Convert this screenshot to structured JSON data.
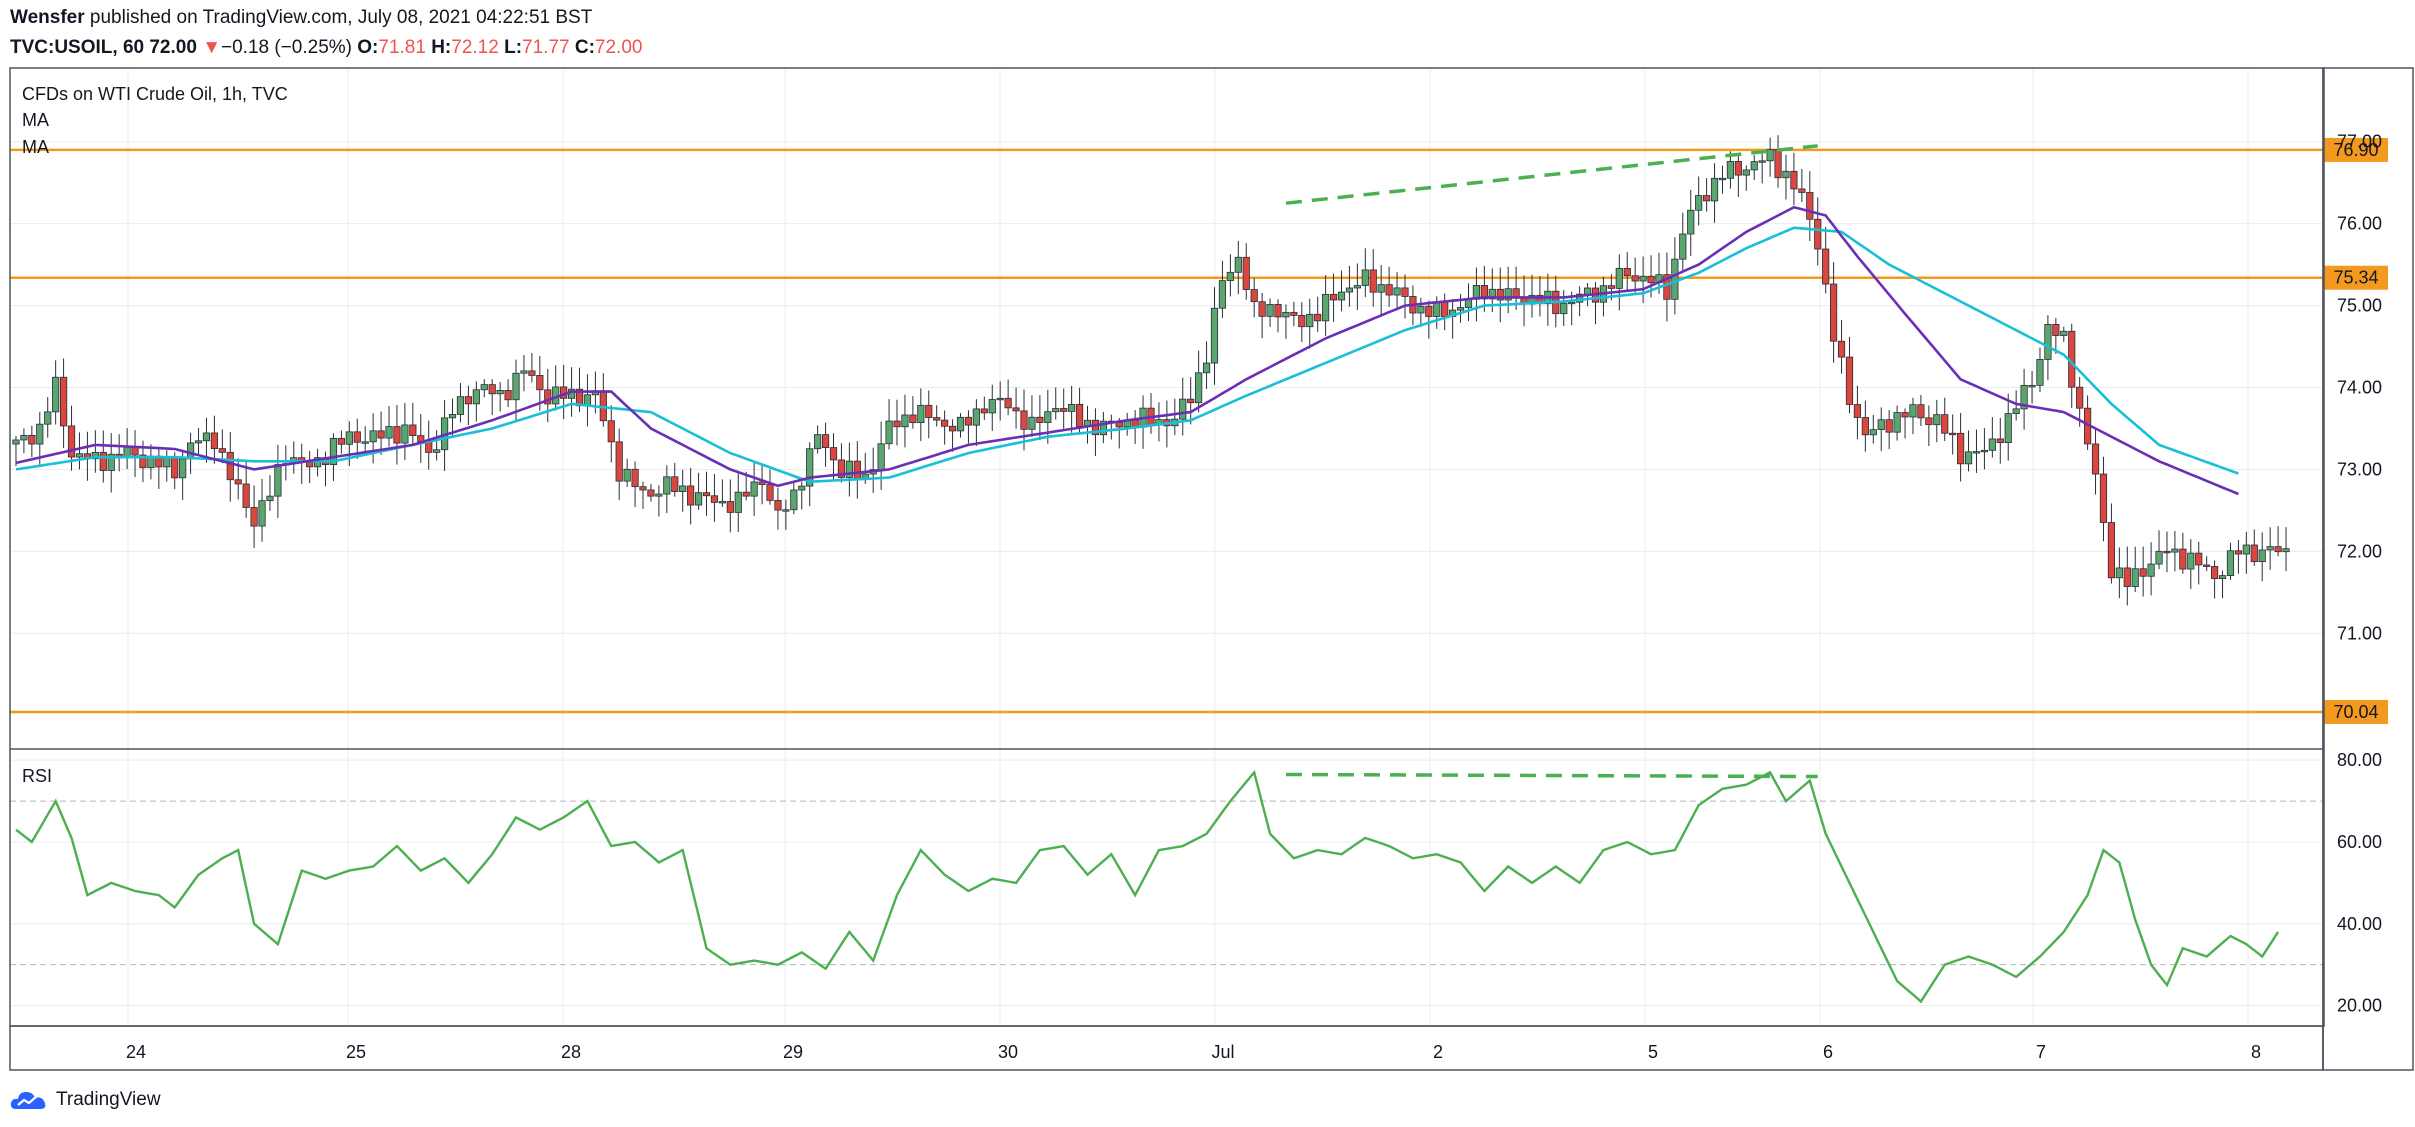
{
  "header": {
    "publisher": "Wensfer",
    "published_text": "published on TradingView.com, July 08, 2021 04:22:51 BST",
    "symbol": "TVC:USOIL, 60",
    "last": "72.00",
    "change_arrow": "▼",
    "change": "−0.18 (−0.25%)",
    "o_label": "O:",
    "o_value": "71.81",
    "h_label": "H:",
    "h_value": "72.12",
    "l_label": "L:",
    "l_value": "71.77",
    "c_label": "C:",
    "c_value": "72.00"
  },
  "legend": {
    "title": "CFDs on WTI Crude Oil, 1h, TVC",
    "ma1": "MA",
    "ma2": "MA",
    "rsi": "RSI"
  },
  "footer": {
    "brand": "TradingView",
    "logo_icon": "tradingview-cloud-icon"
  },
  "colors": {
    "up": "#26a69a",
    "up_fill": "#5aa66e",
    "down": "#d9473f",
    "ma_fast": "#6a2fb5",
    "ma_slow": "#19bfd6",
    "level": "#f39a1e",
    "trend": "#4caf50",
    "rsi": "#4caf50",
    "grid": "#e9ecf1",
    "axis": "#131722"
  },
  "chart_data": {
    "type": "candlestick",
    "x_tick_labels": [
      "24",
      "25",
      "28",
      "29",
      "30",
      "Jul",
      "2",
      "5",
      "6",
      "7",
      "8"
    ],
    "price_ticks": [
      "72.00",
      "71.00",
      "73.00",
      "74.00",
      "75.00",
      "76.00",
      "77.00"
    ],
    "price_range": [
      69.6,
      77.9
    ],
    "levels": [
      {
        "value": 76.9,
        "label": "76.90"
      },
      {
        "value": 75.34,
        "label": "75.34"
      },
      {
        "value": 70.04,
        "label": "70.04"
      }
    ],
    "price_anchors": [
      [
        0,
        73.3
      ],
      [
        3,
        73.5
      ],
      [
        5,
        74.0
      ],
      [
        7,
        73.2
      ],
      [
        10,
        73.1
      ],
      [
        14,
        73.2
      ],
      [
        17,
        73.1
      ],
      [
        20,
        73.0
      ],
      [
        22,
        73.3
      ],
      [
        25,
        73.4
      ],
      [
        27,
        72.9
      ],
      [
        30,
        72.4
      ],
      [
        32,
        72.7
      ],
      [
        34,
        73.2
      ],
      [
        37,
        73.0
      ],
      [
        40,
        73.3
      ],
      [
        43,
        73.4
      ],
      [
        46,
        73.4
      ],
      [
        49,
        73.5
      ],
      [
        52,
        73.2
      ],
      [
        55,
        73.7
      ],
      [
        58,
        74.0
      ],
      [
        61,
        73.9
      ],
      [
        64,
        74.2
      ],
      [
        67,
        73.9
      ],
      [
        70,
        73.9
      ],
      [
        73,
        73.9
      ],
      [
        76,
        73.0
      ],
      [
        79,
        72.7
      ],
      [
        82,
        72.8
      ],
      [
        85,
        72.7
      ],
      [
        88,
        72.6
      ],
      [
        91,
        72.6
      ],
      [
        94,
        72.9
      ],
      [
        96,
        72.4
      ],
      [
        98,
        72.7
      ],
      [
        101,
        73.4
      ],
      [
        104,
        73.0
      ],
      [
        107,
        72.9
      ],
      [
        110,
        73.5
      ],
      [
        113,
        73.7
      ],
      [
        116,
        73.6
      ],
      [
        119,
        73.5
      ],
      [
        122,
        73.8
      ],
      [
        125,
        73.8
      ],
      [
        128,
        73.5
      ],
      [
        131,
        73.8
      ],
      [
        134,
        73.6
      ],
      [
        137,
        73.5
      ],
      [
        140,
        73.6
      ],
      [
        143,
        73.6
      ],
      [
        146,
        73.6
      ],
      [
        148,
        73.9
      ],
      [
        150,
        74.4
      ],
      [
        152,
        75.3
      ],
      [
        154,
        75.6
      ],
      [
        156,
        74.9
      ],
      [
        158,
        75.0
      ],
      [
        161,
        74.8
      ],
      [
        164,
        74.9
      ],
      [
        167,
        75.2
      ],
      [
        170,
        75.3
      ],
      [
        173,
        75.2
      ],
      [
        176,
        75.0
      ],
      [
        179,
        74.9
      ],
      [
        182,
        75.0
      ],
      [
        185,
        75.2
      ],
      [
        188,
        75.1
      ],
      [
        191,
        75.1
      ],
      [
        194,
        75.0
      ],
      [
        197,
        75.1
      ],
      [
        200,
        75.2
      ],
      [
        203,
        75.4
      ],
      [
        206,
        75.3
      ],
      [
        208,
        75.2
      ],
      [
        210,
        75.9
      ],
      [
        212,
        76.3
      ],
      [
        215,
        76.6
      ],
      [
        218,
        76.7
      ],
      [
        221,
        76.8
      ],
      [
        223,
        76.6
      ],
      [
        225,
        76.3
      ],
      [
        227,
        75.8
      ],
      [
        229,
        74.6
      ],
      [
        231,
        73.9
      ],
      [
        233,
        73.4
      ],
      [
        236,
        73.6
      ],
      [
        239,
        73.7
      ],
      [
        242,
        73.6
      ],
      [
        245,
        73.2
      ],
      [
        248,
        73.2
      ],
      [
        251,
        73.6
      ],
      [
        254,
        74.1
      ],
      [
        256,
        74.7
      ],
      [
        258,
        74.6
      ],
      [
        260,
        73.7
      ],
      [
        262,
        72.9
      ],
      [
        264,
        71.8
      ],
      [
        266,
        71.6
      ],
      [
        268,
        71.8
      ],
      [
        271,
        72.0
      ],
      [
        274,
        71.9
      ],
      [
        277,
        71.7
      ],
      [
        280,
        72.0
      ]
    ],
    "ma_fast_anchors": [
      [
        0,
        73.08
      ],
      [
        10,
        73.3
      ],
      [
        20,
        73.25
      ],
      [
        30,
        73.0
      ],
      [
        40,
        73.15
      ],
      [
        50,
        73.3
      ],
      [
        60,
        73.6
      ],
      [
        70,
        73.95
      ],
      [
        75,
        73.95
      ],
      [
        80,
        73.5
      ],
      [
        90,
        73.0
      ],
      [
        96,
        72.8
      ],
      [
        100,
        72.9
      ],
      [
        110,
        73.0
      ],
      [
        120,
        73.3
      ],
      [
        130,
        73.45
      ],
      [
        140,
        73.6
      ],
      [
        148,
        73.7
      ],
      [
        155,
        74.1
      ],
      [
        165,
        74.6
      ],
      [
        175,
        75.0
      ],
      [
        185,
        75.1
      ],
      [
        195,
        75.1
      ],
      [
        205,
        75.2
      ],
      [
        212,
        75.5
      ],
      [
        218,
        75.9
      ],
      [
        224,
        76.2
      ],
      [
        228,
        76.1
      ],
      [
        232,
        75.6
      ],
      [
        238,
        74.9
      ],
      [
        245,
        74.1
      ],
      [
        252,
        73.8
      ],
      [
        258,
        73.7
      ],
      [
        264,
        73.4
      ],
      [
        270,
        73.1
      ],
      [
        280,
        72.7
      ]
    ],
    "ma_slow_anchors": [
      [
        0,
        73.0
      ],
      [
        10,
        73.15
      ],
      [
        20,
        73.15
      ],
      [
        30,
        73.1
      ],
      [
        40,
        73.1
      ],
      [
        50,
        73.3
      ],
      [
        60,
        73.5
      ],
      [
        70,
        73.8
      ],
      [
        80,
        73.7
      ],
      [
        90,
        73.2
      ],
      [
        100,
        72.85
      ],
      [
        110,
        72.9
      ],
      [
        120,
        73.2
      ],
      [
        130,
        73.4
      ],
      [
        140,
        73.5
      ],
      [
        148,
        73.6
      ],
      [
        155,
        73.9
      ],
      [
        165,
        74.3
      ],
      [
        175,
        74.7
      ],
      [
        185,
        75.0
      ],
      [
        195,
        75.05
      ],
      [
        205,
        75.15
      ],
      [
        212,
        75.4
      ],
      [
        218,
        75.7
      ],
      [
        224,
        75.95
      ],
      [
        230,
        75.9
      ],
      [
        236,
        75.5
      ],
      [
        242,
        75.2
      ],
      [
        248,
        74.9
      ],
      [
        254,
        74.6
      ],
      [
        258,
        74.4
      ],
      [
        264,
        73.8
      ],
      [
        270,
        73.3
      ],
      [
        280,
        72.95
      ]
    ],
    "trendline_price": {
      "from": [
        160,
        76.25
      ],
      "to": [
        227,
        76.95
      ]
    },
    "rsi": {
      "range": [
        15,
        82
      ],
      "ticks": [
        "80.00",
        "60.00",
        "40.00",
        "20.00"
      ],
      "bands": [
        70,
        30
      ],
      "trendline": {
        "from": [
          160,
          76.5
        ],
        "to": [
          227,
          76.0
        ]
      },
      "anchors": [
        [
          0,
          63
        ],
        [
          2,
          60
        ],
        [
          5,
          70
        ],
        [
          7,
          61
        ],
        [
          9,
          47
        ],
        [
          12,
          50
        ],
        [
          15,
          48
        ],
        [
          18,
          47
        ],
        [
          20,
          44
        ],
        [
          23,
          52
        ],
        [
          26,
          56
        ],
        [
          28,
          58
        ],
        [
          30,
          40
        ],
        [
          33,
          35
        ],
        [
          36,
          53
        ],
        [
          39,
          51
        ],
        [
          42,
          53
        ],
        [
          45,
          54
        ],
        [
          48,
          59
        ],
        [
          51,
          53
        ],
        [
          54,
          56
        ],
        [
          57,
          50
        ],
        [
          60,
          57
        ],
        [
          63,
          66
        ],
        [
          66,
          63
        ],
        [
          69,
          66
        ],
        [
          72,
          70
        ],
        [
          75,
          59
        ],
        [
          78,
          60
        ],
        [
          81,
          55
        ],
        [
          84,
          58
        ],
        [
          87,
          34
        ],
        [
          90,
          30
        ],
        [
          93,
          31
        ],
        [
          96,
          30
        ],
        [
          99,
          33
        ],
        [
          102,
          29
        ],
        [
          105,
          38
        ],
        [
          108,
          31
        ],
        [
          111,
          47
        ],
        [
          114,
          58
        ],
        [
          117,
          52
        ],
        [
          120,
          48
        ],
        [
          123,
          51
        ],
        [
          126,
          50
        ],
        [
          129,
          58
        ],
        [
          132,
          59
        ],
        [
          135,
          52
        ],
        [
          138,
          57
        ],
        [
          141,
          47
        ],
        [
          144,
          58
        ],
        [
          147,
          59
        ],
        [
          150,
          62
        ],
        [
          153,
          70
        ],
        [
          156,
          77
        ],
        [
          158,
          62
        ],
        [
          161,
          56
        ],
        [
          164,
          58
        ],
        [
          167,
          57
        ],
        [
          170,
          61
        ],
        [
          173,
          59
        ],
        [
          176,
          56
        ],
        [
          179,
          57
        ],
        [
          182,
          55
        ],
        [
          185,
          48
        ],
        [
          188,
          54
        ],
        [
          191,
          50
        ],
        [
          194,
          54
        ],
        [
          197,
          50
        ],
        [
          200,
          58
        ],
        [
          203,
          60
        ],
        [
          206,
          57
        ],
        [
          209,
          58
        ],
        [
          212,
          69
        ],
        [
          215,
          73
        ],
        [
          218,
          74
        ],
        [
          221,
          77
        ],
        [
          223,
          70
        ],
        [
          226,
          75
        ],
        [
          228,
          62
        ],
        [
          231,
          50
        ],
        [
          234,
          38
        ],
        [
          237,
          26
        ],
        [
          240,
          21
        ],
        [
          243,
          30
        ],
        [
          246,
          32
        ],
        [
          249,
          30
        ],
        [
          252,
          27
        ],
        [
          255,
          32
        ],
        [
          258,
          38
        ],
        [
          261,
          47
        ],
        [
          263,
          58
        ],
        [
          265,
          55
        ],
        [
          267,
          41
        ],
        [
          269,
          30
        ],
        [
          271,
          25
        ],
        [
          273,
          34
        ],
        [
          276,
          32
        ],
        [
          279,
          37
        ],
        [
          281,
          35
        ],
        [
          283,
          32
        ],
        [
          285,
          38
        ]
      ]
    }
  }
}
